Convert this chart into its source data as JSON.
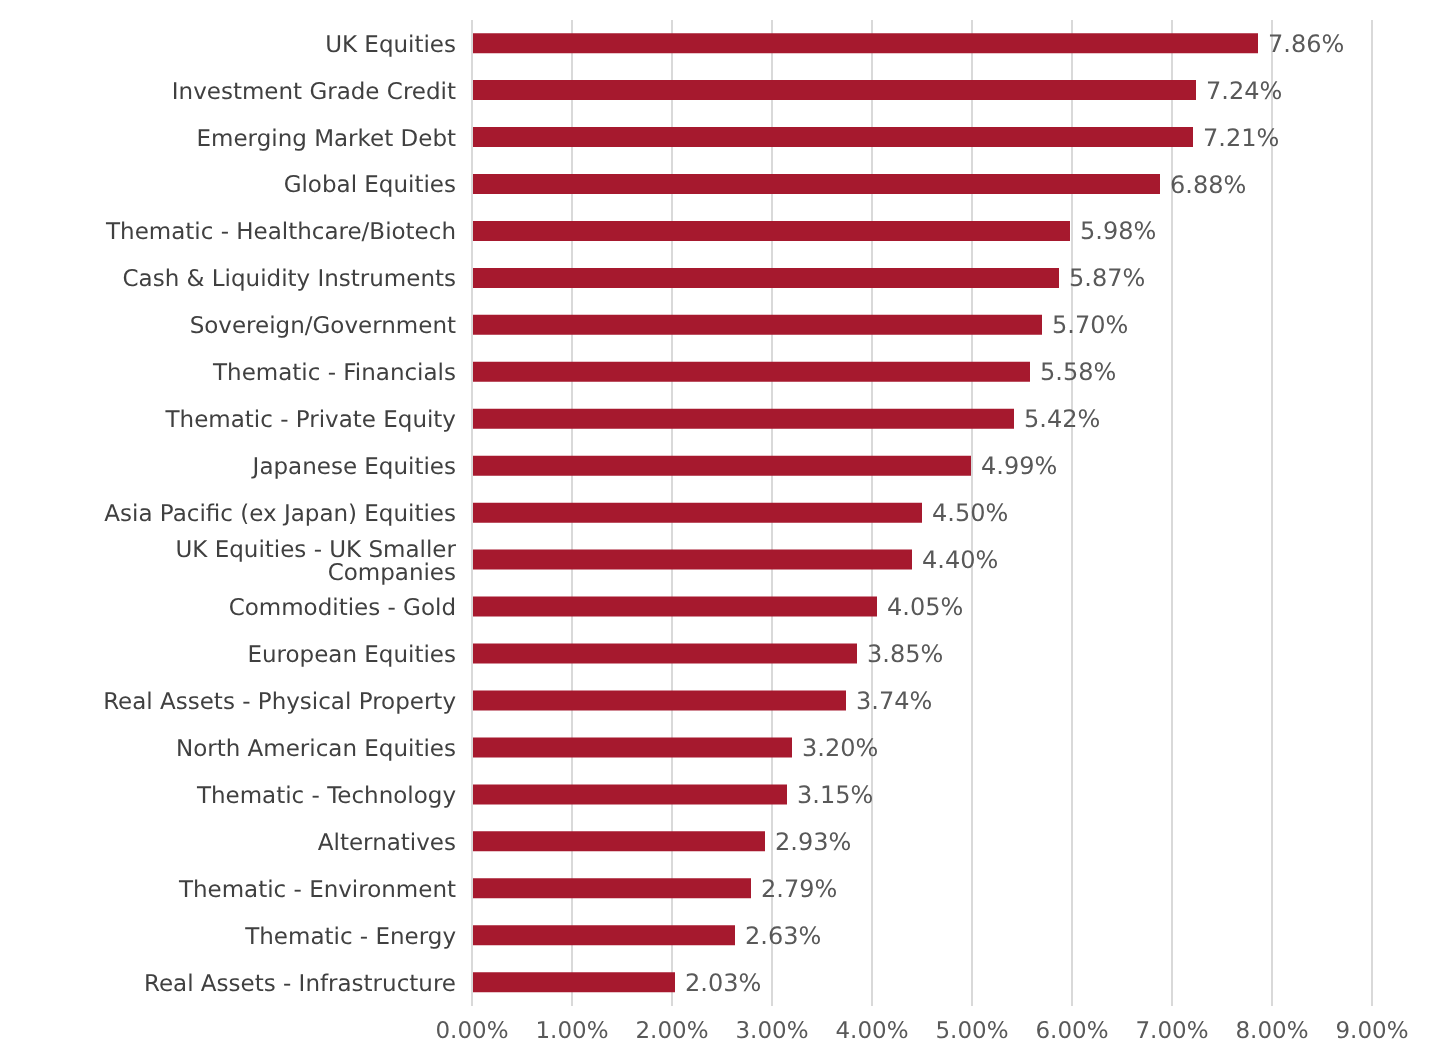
{
  "chart_data": {
    "type": "bar",
    "orientation": "horizontal",
    "categories": [
      "UK Equities",
      "Investment Grade Credit",
      "Emerging Market Debt",
      "Global Equities",
      "Thematic - Healthcare/Biotech",
      "Cash & Liquidity Instruments",
      "Sovereign/Government",
      "Thematic - Financials",
      "Thematic - Private Equity",
      "Japanese Equities",
      "Asia Pacific (ex Japan) Equities",
      "UK Equities - UK Smaller Companies",
      "Commodities - Gold",
      "European Equities",
      "Real Assets - Physical Property",
      "North American Equities",
      "Thematic - Technology",
      "Alternatives",
      "Thematic - Environment",
      "Thematic - Energy",
      "Real Assets - Infrastructure"
    ],
    "values": [
      7.86,
      7.24,
      7.21,
      6.88,
      5.98,
      5.87,
      5.7,
      5.58,
      5.42,
      4.99,
      4.5,
      4.4,
      4.05,
      3.85,
      3.74,
      3.2,
      3.15,
      2.93,
      2.79,
      2.63,
      2.03
    ],
    "value_labels": [
      "7.86%",
      "7.24%",
      "7.21%",
      "6.88%",
      "5.98%",
      "5.87%",
      "5.70%",
      "5.58%",
      "5.42%",
      "4.99%",
      "4.50%",
      "4.40%",
      "4.05%",
      "3.85%",
      "3.74%",
      "3.20%",
      "3.15%",
      "2.93%",
      "2.79%",
      "2.63%",
      "2.03%"
    ],
    "color": "#a6192e",
    "xlim": [
      0,
      9
    ],
    "xticks": [
      {
        "value": 0,
        "label": "0.00%"
      },
      {
        "value": 1,
        "label": "1.00%"
      },
      {
        "value": 2,
        "label": "2.00%"
      },
      {
        "value": 3,
        "label": "3.00%"
      },
      {
        "value": 4,
        "label": "4.00%"
      },
      {
        "value": 5,
        "label": "5.00%"
      },
      {
        "value": 6,
        "label": "6.00%"
      },
      {
        "value": 7,
        "label": "7.00%"
      },
      {
        "value": 8,
        "label": "8.00%"
      },
      {
        "value": 9,
        "label": "9.00%"
      }
    ],
    "grid": "x"
  }
}
